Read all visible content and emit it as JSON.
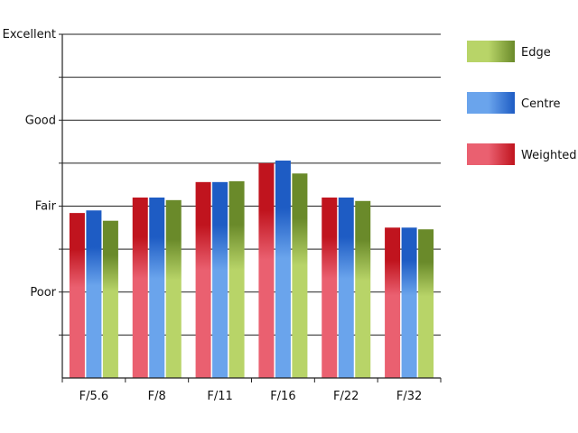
{
  "chart_data": {
    "type": "bar",
    "categories": [
      "F/5.6",
      "F/8",
      "F/11",
      "F/16",
      "F/22",
      "F/32"
    ],
    "series": [
      {
        "name": "Weighted",
        "values": [
          1.92,
          2.1,
          2.28,
          2.5,
          2.1,
          1.75
        ],
        "color": "#c0141e",
        "color_light": "#ea6070"
      },
      {
        "name": "Centre",
        "values": [
          1.95,
          2.1,
          2.28,
          2.53,
          2.1,
          1.75
        ],
        "color": "#1e5cc4",
        "color_light": "#6aa4ec"
      },
      {
        "name": "Edge",
        "values": [
          1.83,
          2.07,
          2.29,
          2.38,
          2.06,
          1.73
        ],
        "color": "#6a8a2a",
        "color_light": "#b8d468"
      }
    ],
    "yticks": [
      "Poor",
      "Fair",
      "Good",
      "Excellent"
    ],
    "ytick_values": [
      1,
      2,
      3,
      4
    ],
    "ylim": [
      0,
      4
    ],
    "grid": true,
    "legend_position": "right",
    "legend_order": [
      "Edge",
      "Centre",
      "Weighted"
    ],
    "title": "",
    "xlabel": "",
    "ylabel": ""
  }
}
